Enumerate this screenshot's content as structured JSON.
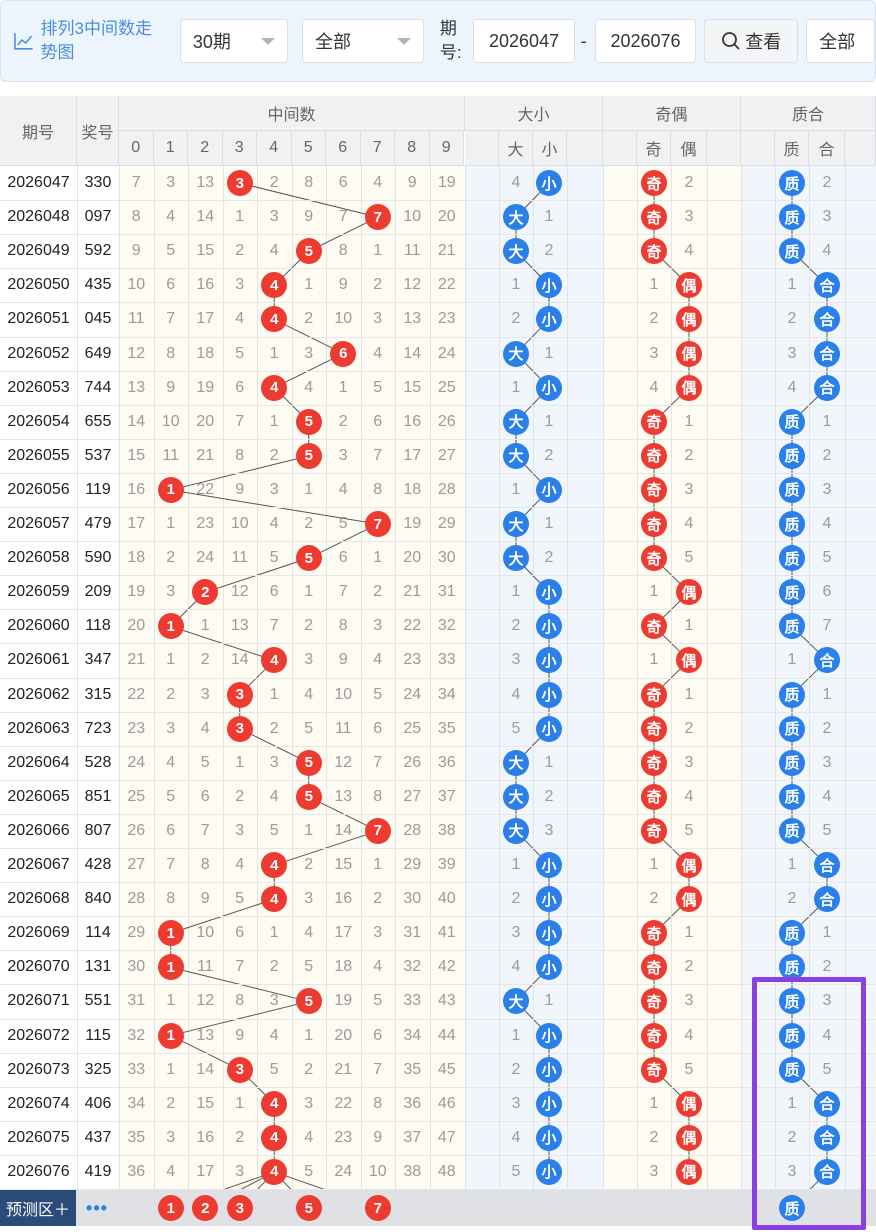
{
  "toolbar": {
    "title": "排列3中间数走势图",
    "icon": "chart-line-icon",
    "period_select": "30期",
    "scope_select": "全部",
    "issue_label": "期号:",
    "from_issue": "2026047",
    "to_issue": "2026076",
    "view_button": "查看",
    "search_icon": "search-icon",
    "all_select": "全部"
  },
  "headers": {
    "issue": "期号",
    "prize": "奖号",
    "middle": "中间数",
    "size": "大小",
    "parity": "奇偶",
    "prime": "质合",
    "digits": [
      "0",
      "1",
      "2",
      "3",
      "4",
      "5",
      "6",
      "7",
      "8",
      "9"
    ],
    "size_cols": [
      "大",
      "小"
    ],
    "parity_cols": [
      "奇",
      "偶"
    ],
    "prime_cols": [
      "质",
      "合"
    ]
  },
  "rows": [
    {
      "issue": "2026047",
      "prize": "330",
      "mid": 3,
      "miss": [
        7,
        3,
        13,
        null,
        2,
        8,
        6,
        4,
        9,
        19
      ],
      "size": "小",
      "size_miss": 4,
      "parity": "奇",
      "parity_miss": 2,
      "prime": "质",
      "prime_miss": 2
    },
    {
      "issue": "2026048",
      "prize": "097",
      "mid": 7,
      "miss": [
        8,
        4,
        14,
        1,
        3,
        9,
        7,
        null,
        10,
        20
      ],
      "size": "大",
      "size_miss": 1,
      "parity": "奇",
      "parity_miss": 3,
      "prime": "质",
      "prime_miss": 3
    },
    {
      "issue": "2026049",
      "prize": "592",
      "mid": 5,
      "miss": [
        9,
        5,
        15,
        2,
        4,
        null,
        8,
        1,
        11,
        21
      ],
      "size": "大",
      "size_miss": 2,
      "parity": "奇",
      "parity_miss": 4,
      "prime": "质",
      "prime_miss": 4
    },
    {
      "issue": "2026050",
      "prize": "435",
      "mid": 4,
      "miss": [
        10,
        6,
        16,
        3,
        null,
        1,
        9,
        2,
        12,
        22
      ],
      "size": "小",
      "size_miss": 1,
      "parity": "偶",
      "parity_miss": 1,
      "prime": "合",
      "prime_miss": 1
    },
    {
      "issue": "2026051",
      "prize": "045",
      "mid": 4,
      "miss": [
        11,
        7,
        17,
        4,
        null,
        2,
        10,
        3,
        13,
        23
      ],
      "size": "小",
      "size_miss": 2,
      "parity": "偶",
      "parity_miss": 2,
      "prime": "合",
      "prime_miss": 2
    },
    {
      "issue": "2026052",
      "prize": "649",
      "mid": 6,
      "miss": [
        12,
        8,
        18,
        5,
        1,
        3,
        null,
        4,
        14,
        24
      ],
      "size": "大",
      "size_miss": 1,
      "parity": "偶",
      "parity_miss": 3,
      "prime": "合",
      "prime_miss": 3
    },
    {
      "issue": "2026053",
      "prize": "744",
      "mid": 4,
      "miss": [
        13,
        9,
        19,
        6,
        null,
        4,
        1,
        5,
        15,
        25
      ],
      "size": "小",
      "size_miss": 1,
      "parity": "偶",
      "parity_miss": 4,
      "prime": "合",
      "prime_miss": 4
    },
    {
      "issue": "2026054",
      "prize": "655",
      "mid": 5,
      "miss": [
        14,
        10,
        20,
        7,
        1,
        null,
        2,
        6,
        16,
        26
      ],
      "size": "大",
      "size_miss": 1,
      "parity": "奇",
      "parity_miss": 1,
      "prime": "质",
      "prime_miss": 1
    },
    {
      "issue": "2026055",
      "prize": "537",
      "mid": 5,
      "miss": [
        15,
        11,
        21,
        8,
        2,
        null,
        3,
        7,
        17,
        27
      ],
      "size": "大",
      "size_miss": 2,
      "parity": "奇",
      "parity_miss": 2,
      "prime": "质",
      "prime_miss": 2
    },
    {
      "issue": "2026056",
      "prize": "119",
      "mid": 1,
      "miss": [
        16,
        null,
        22,
        9,
        3,
        1,
        4,
        8,
        18,
        28
      ],
      "size": "小",
      "size_miss": 1,
      "parity": "奇",
      "parity_miss": 3,
      "prime": "质",
      "prime_miss": 3
    },
    {
      "issue": "2026057",
      "prize": "479",
      "mid": 7,
      "miss": [
        17,
        1,
        23,
        10,
        4,
        2,
        5,
        null,
        19,
        29
      ],
      "size": "大",
      "size_miss": 1,
      "parity": "奇",
      "parity_miss": 4,
      "prime": "质",
      "prime_miss": 4
    },
    {
      "issue": "2026058",
      "prize": "590",
      "mid": 5,
      "miss": [
        18,
        2,
        24,
        11,
        5,
        null,
        6,
        1,
        20,
        30
      ],
      "size": "大",
      "size_miss": 2,
      "parity": "奇",
      "parity_miss": 5,
      "prime": "质",
      "prime_miss": 5
    },
    {
      "issue": "2026059",
      "prize": "209",
      "mid": 2,
      "miss": [
        19,
        3,
        null,
        12,
        6,
        1,
        7,
        2,
        21,
        31
      ],
      "size": "小",
      "size_miss": 1,
      "parity": "偶",
      "parity_miss": 1,
      "prime": "质",
      "prime_miss": 6
    },
    {
      "issue": "2026060",
      "prize": "118",
      "mid": 1,
      "miss": [
        20,
        null,
        1,
        13,
        7,
        2,
        8,
        3,
        22,
        32
      ],
      "size": "小",
      "size_miss": 2,
      "parity": "奇",
      "parity_miss": 1,
      "prime": "质",
      "prime_miss": 7
    },
    {
      "issue": "2026061",
      "prize": "347",
      "mid": 4,
      "miss": [
        21,
        1,
        2,
        14,
        null,
        3,
        9,
        4,
        23,
        33
      ],
      "size": "小",
      "size_miss": 3,
      "parity": "偶",
      "parity_miss": 1,
      "prime": "合",
      "prime_miss": 1
    },
    {
      "issue": "2026062",
      "prize": "315",
      "mid": 3,
      "miss": [
        22,
        2,
        3,
        null,
        1,
        4,
        10,
        5,
        24,
        34
      ],
      "size": "小",
      "size_miss": 4,
      "parity": "奇",
      "parity_miss": 1,
      "prime": "质",
      "prime_miss": 1
    },
    {
      "issue": "2026063",
      "prize": "723",
      "mid": 3,
      "miss": [
        23,
        3,
        4,
        null,
        2,
        5,
        11,
        6,
        25,
        35
      ],
      "size": "小",
      "size_miss": 5,
      "parity": "奇",
      "parity_miss": 2,
      "prime": "质",
      "prime_miss": 2
    },
    {
      "issue": "2026064",
      "prize": "528",
      "mid": 5,
      "miss": [
        24,
        4,
        5,
        1,
        3,
        null,
        12,
        7,
        26,
        36
      ],
      "size": "大",
      "size_miss": 1,
      "parity": "奇",
      "parity_miss": 3,
      "prime": "质",
      "prime_miss": 3
    },
    {
      "issue": "2026065",
      "prize": "851",
      "mid": 5,
      "miss": [
        25,
        5,
        6,
        2,
        4,
        null,
        13,
        8,
        27,
        37
      ],
      "size": "大",
      "size_miss": 2,
      "parity": "奇",
      "parity_miss": 4,
      "prime": "质",
      "prime_miss": 4
    },
    {
      "issue": "2026066",
      "prize": "807",
      "mid": 7,
      "miss": [
        26,
        6,
        7,
        3,
        5,
        1,
        14,
        null,
        28,
        38
      ],
      "size": "大",
      "size_miss": 3,
      "parity": "奇",
      "parity_miss": 5,
      "prime": "质",
      "prime_miss": 5
    },
    {
      "issue": "2026067",
      "prize": "428",
      "mid": 4,
      "miss": [
        27,
        7,
        8,
        4,
        null,
        2,
        15,
        1,
        29,
        39
      ],
      "size": "小",
      "size_miss": 1,
      "parity": "偶",
      "parity_miss": 1,
      "prime": "合",
      "prime_miss": 1
    },
    {
      "issue": "2026068",
      "prize": "840",
      "mid": 4,
      "miss": [
        28,
        8,
        9,
        5,
        null,
        3,
        16,
        2,
        30,
        40
      ],
      "size": "小",
      "size_miss": 2,
      "parity": "偶",
      "parity_miss": 2,
      "prime": "合",
      "prime_miss": 2
    },
    {
      "issue": "2026069",
      "prize": "114",
      "mid": 1,
      "miss": [
        29,
        null,
        10,
        6,
        1,
        4,
        17,
        3,
        31,
        41
      ],
      "size": "小",
      "size_miss": 3,
      "parity": "奇",
      "parity_miss": 1,
      "prime": "质",
      "prime_miss": 1
    },
    {
      "issue": "2026070",
      "prize": "131",
      "mid": 1,
      "miss": [
        30,
        null,
        11,
        7,
        2,
        5,
        18,
        4,
        32,
        42
      ],
      "size": "小",
      "size_miss": 4,
      "parity": "奇",
      "parity_miss": 2,
      "prime": "质",
      "prime_miss": 2
    },
    {
      "issue": "2026071",
      "prize": "551",
      "mid": 5,
      "miss": [
        31,
        1,
        12,
        8,
        3,
        null,
        19,
        5,
        33,
        43
      ],
      "size": "大",
      "size_miss": 1,
      "parity": "奇",
      "parity_miss": 3,
      "prime": "质",
      "prime_miss": 3
    },
    {
      "issue": "2026072",
      "prize": "115",
      "mid": 1,
      "miss": [
        32,
        null,
        13,
        9,
        4,
        1,
        20,
        6,
        34,
        44
      ],
      "size": "小",
      "size_miss": 1,
      "parity": "奇",
      "parity_miss": 4,
      "prime": "质",
      "prime_miss": 4
    },
    {
      "issue": "2026073",
      "prize": "325",
      "mid": 3,
      "miss": [
        33,
        1,
        14,
        null,
        5,
        2,
        21,
        7,
        35,
        45
      ],
      "size": "小",
      "size_miss": 2,
      "parity": "奇",
      "parity_miss": 5,
      "prime": "质",
      "prime_miss": 5
    },
    {
      "issue": "2026074",
      "prize": "406",
      "mid": 4,
      "miss": [
        34,
        2,
        15,
        1,
        null,
        3,
        22,
        8,
        36,
        46
      ],
      "size": "小",
      "size_miss": 3,
      "parity": "偶",
      "parity_miss": 1,
      "prime": "合",
      "prime_miss": 1
    },
    {
      "issue": "2026075",
      "prize": "437",
      "mid": 4,
      "miss": [
        35,
        3,
        16,
        2,
        null,
        4,
        23,
        9,
        37,
        47
      ],
      "size": "小",
      "size_miss": 4,
      "parity": "偶",
      "parity_miss": 2,
      "prime": "合",
      "prime_miss": 2
    },
    {
      "issue": "2026076",
      "prize": "419",
      "mid": 4,
      "miss": [
        36,
        4,
        17,
        3,
        null,
        5,
        24,
        10,
        38,
        48
      ],
      "size": "小",
      "size_miss": 5,
      "parity": "偶",
      "parity_miss": 3,
      "prime": "合",
      "prime_miss": 3
    }
  ],
  "prediction": {
    "label": "预测区＋",
    "more": "•••",
    "balls": [
      1,
      2,
      3,
      5,
      7
    ],
    "prime": "质"
  },
  "colors": {
    "red_ball": "#ed3b32",
    "blue_ball": "#2a7fe8",
    "highlight": "#8a3fe0",
    "link_line": "#555555"
  }
}
